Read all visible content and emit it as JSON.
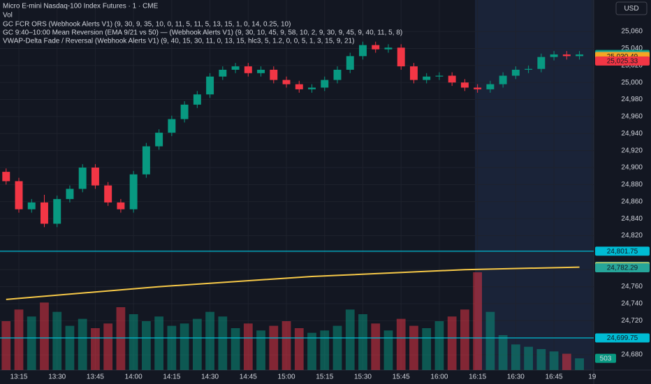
{
  "chart_data": {
    "type": "candlestick",
    "title": "Micro E-mini Nasdaq-100 Index Futures · 1 · CME",
    "volume_label": "Vol",
    "indicators": [
      "GC FCR ORS (Webhook Alerts V1) (9, 30, 9, 35, 10, 0, 11, 5, 11, 5, 13, 15, 1, 0, 14, 0.25, 10)",
      "GC 9:40–10:00 Mean Reversion (EMA 9/21 vs 50) — (Webhook Alerts V1) (9, 30, 10, 45, 9, 58, 10, 2, 9, 30, 9, 45, 9, 40, 11, 5, 8)",
      "VWAP-Delta Fade / Reversal (Webhook Alerts V1) (9, 40, 15, 30, 11, 0, 13, 15, hlc3, 5, 1.2, 0, 0, 5, 1, 3, 15, 9, 21)"
    ],
    "currency": "USD",
    "up_color": "#089981",
    "down_color": "#f23645",
    "x": [
      790,
      795,
      800,
      805,
      810,
      815,
      820,
      825,
      830,
      835,
      840,
      845,
      850,
      855,
      860,
      865,
      870,
      875,
      880,
      885,
      890,
      895,
      900,
      905,
      910,
      915,
      920,
      925,
      930,
      935,
      940,
      945,
      950,
      955,
      960,
      965,
      970,
      975,
      980,
      985,
      990,
      995,
      1000,
      1005,
      1010,
      1015
    ],
    "open": [
      24895,
      24884,
      24851,
      24859,
      24834,
      24863,
      24875,
      24900,
      24879,
      24859,
      24851,
      24892,
      24925,
      24941,
      24957,
      24974,
      24986,
      25007,
      25015,
      25019,
      25011,
      25015,
      25003,
      24998,
      24992,
      24994,
      25003,
      25015,
      25031,
      25044,
      25039,
      25041,
      25019,
      25003,
      25007,
      25008,
      25000,
      24994,
      24992,
      24998,
      25008,
      25015,
      25016,
      25030,
      25033,
      25031
    ],
    "high": [
      24899,
      24888,
      24863,
      24868,
      24867,
      24879,
      24904,
      24904,
      24883,
      24863,
      24896,
      24929,
      24945,
      24961,
      24978,
      24990,
      25011,
      25019,
      25023,
      25023,
      25019,
      25019,
      25007,
      25002,
      24998,
      25007,
      25019,
      25035,
      25048,
      25048,
      25045,
      25045,
      25023,
      25011,
      25012,
      25012,
      25004,
      24998,
      25002,
      25012,
      25019,
      25020,
      25034,
      25037,
      25037,
      25037
    ],
    "high_note": null,
    "low": [
      24880,
      24847,
      24847,
      24830,
      24830,
      24859,
      24871,
      24875,
      24855,
      24847,
      24847,
      24888,
      24921,
      24937,
      24953,
      24970,
      24982,
      25003,
      25011,
      25007,
      25007,
      24999,
      24994,
      24988,
      24988,
      24990,
      24999,
      25011,
      25027,
      25035,
      25035,
      25015,
      24999,
      24999,
      25003,
      24996,
      24990,
      24988,
      24988,
      24994,
      25004,
      25011,
      25012,
      25026,
      25027,
      25027
    ],
    "close": [
      24884,
      24851,
      24859,
      24834,
      24863,
      24875,
      24900,
      24879,
      24859,
      24851,
      24892,
      24925,
      24941,
      24957,
      24974,
      24986,
      25007,
      25015,
      25019,
      25011,
      25015,
      25003,
      24998,
      24992,
      24994,
      25003,
      25015,
      25031,
      25044,
      25039,
      25041,
      25019,
      25003,
      25007,
      25008,
      25000,
      24994,
      24992,
      24998,
      25008,
      25015,
      25016,
      25030,
      25033,
      25031,
      25033
    ],
    "volume": [
      2100,
      2600,
      2300,
      2900,
      2500,
      1900,
      2200,
      1800,
      2000,
      2700,
      2400,
      2100,
      2300,
      1900,
      2000,
      2200,
      2500,
      2300,
      1800,
      2000,
      1700,
      1900,
      2100,
      1800,
      1600,
      1700,
      1900,
      2600,
      2400,
      2000,
      1700,
      2200,
      1900,
      1800,
      2100,
      2300,
      2600,
      4200,
      2500,
      1500,
      1100,
      1000,
      900,
      800,
      700,
      503
    ],
    "xlim": [
      787.6,
      1020.6
    ],
    "xticks": [
      {
        "value": 795,
        "label": "13:15"
      },
      {
        "value": 810,
        "label": "13:30"
      },
      {
        "value": 825,
        "label": "13:45"
      },
      {
        "value": 840,
        "label": "14:00"
      },
      {
        "value": 855,
        "label": "14:15"
      },
      {
        "value": 870,
        "label": "14:30"
      },
      {
        "value": 885,
        "label": "14:45"
      },
      {
        "value": 900,
        "label": "15:00"
      },
      {
        "value": 915,
        "label": "15:15"
      },
      {
        "value": 930,
        "label": "15:30"
      },
      {
        "value": 945,
        "label": "15:45"
      },
      {
        "value": 960,
        "label": "16:00"
      },
      {
        "value": 975,
        "label": "16:15"
      },
      {
        "value": 990,
        "label": "16:30"
      },
      {
        "value": 1005,
        "label": "16:45"
      },
      {
        "value": 1020,
        "label": "19"
      }
    ],
    "ylim": [
      24662,
      25097
    ],
    "yticks": [
      {
        "value": 24680,
        "label": "24,680"
      },
      {
        "value": 24700,
        "label": "24,700"
      },
      {
        "value": 24720,
        "label": "24,720"
      },
      {
        "value": 24740,
        "label": "24,740"
      },
      {
        "value": 24760,
        "label": "24,760"
      },
      {
        "value": 24780,
        "label": "24,780"
      },
      {
        "value": 24800,
        "label": "24,800"
      },
      {
        "value": 24820,
        "label": "24,820"
      },
      {
        "value": 24840,
        "label": "24,840"
      },
      {
        "value": 24860,
        "label": "24,860"
      },
      {
        "value": 24880,
        "label": "24,880"
      },
      {
        "value": 24900,
        "label": "24,900"
      },
      {
        "value": 24920,
        "label": "24,920"
      },
      {
        "value": 24940,
        "label": "24,940"
      },
      {
        "value": 24960,
        "label": "24,960"
      },
      {
        "value": 24980,
        "label": "24,980"
      },
      {
        "value": 25000,
        "label": "25,000"
      },
      {
        "value": 25020,
        "label": "25,020"
      },
      {
        "value": 25040,
        "label": "25,040"
      },
      {
        "value": 25060,
        "label": "25,060"
      }
    ],
    "vwap": {
      "color": "#f7c948",
      "x": [
        790,
        850,
        910,
        970,
        1015
      ],
      "values": [
        24745,
        24760,
        24772,
        24780,
        24783
      ]
    },
    "price_tags": [
      {
        "value": 25033.0,
        "label": "25,033.00",
        "color": "#089981"
      },
      {
        "value": 25031.62,
        "label": "25,031.62",
        "color": "#26a69a"
      },
      {
        "value": 25030.49,
        "label": "25,030.49",
        "color": "#f5a623"
      },
      {
        "value": 25025.33,
        "label": "25,025.33",
        "color": "#f23645"
      },
      {
        "value": 24801.75,
        "label": "24,801.75",
        "color": "#00bcd4",
        "line": true
      },
      {
        "value": 24783.98,
        "label": "24,783.98",
        "color": "#26a69a"
      },
      {
        "value": 24783.13,
        "label": "24,783.13",
        "color": "#f7c948"
      },
      {
        "value": 24782.29,
        "label": "24,782.29",
        "color": "#26a69a"
      },
      {
        "value": 24699.75,
        "label": "24,699.75",
        "color": "#00bcd4",
        "line": true
      }
    ]
  }
}
